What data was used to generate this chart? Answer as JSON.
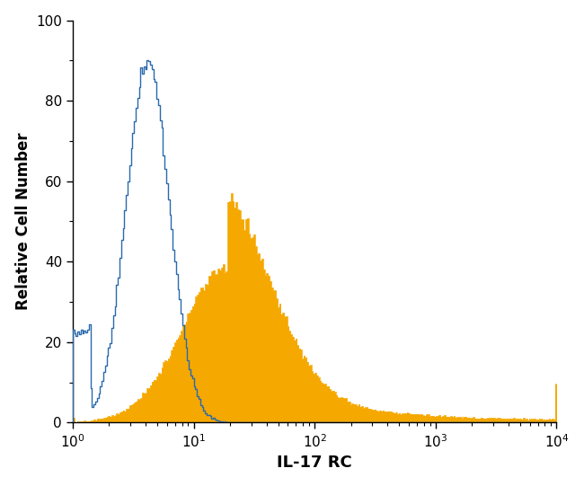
{
  "title": "",
  "xlabel": "IL-17 RC",
  "ylabel": "Relative Cell Number",
  "xlim": [
    1,
    10000
  ],
  "ylim": [
    0,
    100
  ],
  "yticks": [
    0,
    20,
    40,
    60,
    80,
    100
  ],
  "background_color": "#ffffff",
  "blue_color": "#2a6aad",
  "orange_color": "#f5a800",
  "xlabel_fontsize": 13,
  "ylabel_fontsize": 12,
  "tick_fontsize": 11,
  "blue_peak_height": 90,
  "orange_peak_height": 57
}
